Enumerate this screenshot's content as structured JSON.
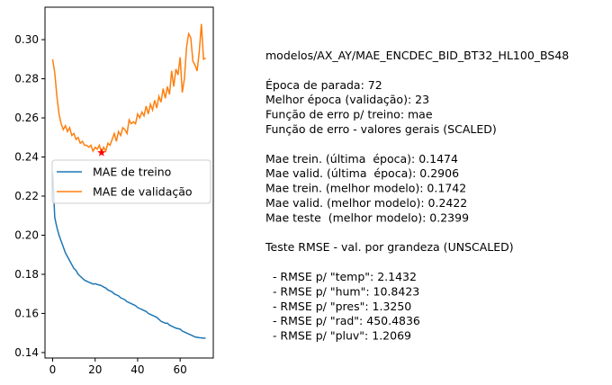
{
  "chart_data": {
    "type": "line",
    "x": [
      0,
      1,
      2,
      3,
      4,
      5,
      6,
      7,
      8,
      9,
      10,
      11,
      12,
      13,
      14,
      15,
      16,
      17,
      18,
      19,
      20,
      21,
      22,
      23,
      24,
      25,
      26,
      27,
      28,
      29,
      30,
      31,
      32,
      33,
      34,
      35,
      36,
      37,
      38,
      39,
      40,
      41,
      42,
      43,
      44,
      45,
      46,
      47,
      48,
      49,
      50,
      51,
      52,
      53,
      54,
      55,
      56,
      57,
      58,
      59,
      60,
      61,
      62,
      63,
      64,
      65,
      66,
      67,
      68,
      69,
      70,
      71,
      72
    ],
    "series": [
      {
        "name": "MAE de treino",
        "color": "#1f77b4",
        "values": [
          0.232,
          0.209,
          0.204,
          0.2,
          0.197,
          0.194,
          0.191,
          0.189,
          0.187,
          0.185,
          0.183,
          0.182,
          0.18,
          0.179,
          0.178,
          0.177,
          0.1765,
          0.176,
          0.1755,
          0.175,
          0.1752,
          0.1748,
          0.1745,
          0.1742,
          0.1735,
          0.173,
          0.172,
          0.1715,
          0.171,
          0.17,
          0.1695,
          0.169,
          0.168,
          0.1675,
          0.167,
          0.166,
          0.1655,
          0.165,
          0.1645,
          0.164,
          0.163,
          0.1625,
          0.162,
          0.1615,
          0.161,
          0.16,
          0.1595,
          0.159,
          0.1585,
          0.158,
          0.157,
          0.156,
          0.1555,
          0.155,
          0.155,
          0.154,
          0.1535,
          0.153,
          0.1525,
          0.1522,
          0.152,
          0.151,
          0.1505,
          0.15,
          0.1495,
          0.149,
          0.1485,
          0.148,
          0.1478,
          0.1476,
          0.1475,
          0.1474,
          0.1474
        ]
      },
      {
        "name": "MAE de validação",
        "color": "#ff7f0e",
        "values": [
          0.29,
          0.283,
          0.271,
          0.262,
          0.257,
          0.254,
          0.256,
          0.253,
          0.255,
          0.251,
          0.252,
          0.249,
          0.25,
          0.247,
          0.248,
          0.246,
          0.246,
          0.245,
          0.246,
          0.243,
          0.245,
          0.244,
          0.246,
          0.2422,
          0.245,
          0.243,
          0.247,
          0.246,
          0.249,
          0.252,
          0.248,
          0.253,
          0.251,
          0.255,
          0.254,
          0.252,
          0.259,
          0.257,
          0.258,
          0.257,
          0.262,
          0.26,
          0.263,
          0.261,
          0.266,
          0.262,
          0.267,
          0.264,
          0.269,
          0.265,
          0.271,
          0.268,
          0.275,
          0.27,
          0.276,
          0.272,
          0.284,
          0.276,
          0.285,
          0.282,
          0.291,
          0.273,
          0.28,
          0.296,
          0.303,
          0.301,
          0.289,
          0.287,
          0.284,
          0.294,
          0.308,
          0.29,
          0.2906
        ]
      }
    ],
    "best_marker_color": "#ff0000",
    "xlim": [
      -3.6,
      75.6
    ],
    "xticks": [
      0,
      20,
      40,
      60
    ],
    "ylim": [
      0.1372,
      0.3166
    ],
    "yticks": [
      {
        "value": 0.14,
        "label": "0.14"
      },
      {
        "value": 0.16,
        "label": "0.16"
      },
      {
        "value": 0.18,
        "label": "0.18"
      },
      {
        "value": 0.2,
        "label": "0.20"
      },
      {
        "value": 0.22,
        "label": "0.22"
      },
      {
        "value": 0.24,
        "label": "0.24"
      },
      {
        "value": 0.26,
        "label": "0.26"
      },
      {
        "value": 0.28,
        "label": "0.28"
      },
      {
        "value": 0.3,
        "label": "0.30"
      }
    ],
    "legend": "center-left",
    "text_panel": [
      [
        "modelos/AX_AY/MAE_ENCDEC_BID_BT32_HL100_BS48"
      ],
      [
        "Época de parada: 72",
        "Melhor época (validação): 23",
        "Função de erro p/ treino: mae",
        "Função de erro - valores gerais (SCALED)"
      ],
      [
        "Mae trein. (última  época): 0.1474",
        "Mae valid. (última  época): 0.2906",
        "Mae trein. (melhor modelo): 0.1742",
        "Mae valid. (melhor modelo): 0.2422",
        "Mae teste  (melhor modelo): 0.2399"
      ],
      [
        "Teste RMSE - val. por grandeza (UNSCALED)"
      ],
      [
        "  - RMSE p/ \"temp\": 2.1432",
        "  - RMSE p/ \"hum\": 10.8423",
        "  - RMSE p/ \"pres\": 1.3250",
        "  - RMSE p/ \"rad\": 450.4836",
        "  - RMSE p/ \"pluv\": 1.2069"
      ]
    ]
  }
}
